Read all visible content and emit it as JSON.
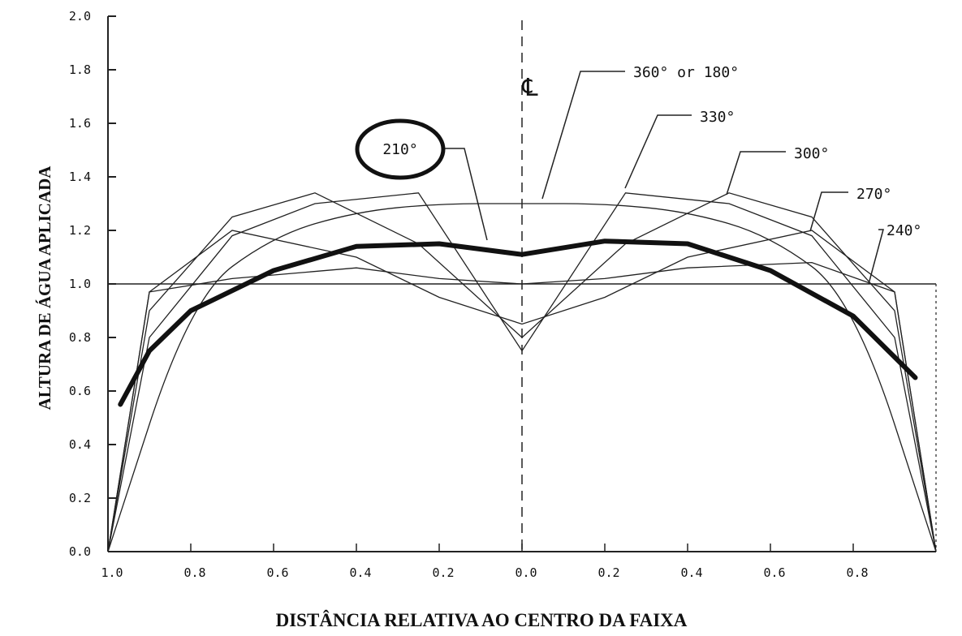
{
  "chart_data": {
    "type": "line",
    "xlabel": "DISTÂNCIA RELATIVA AO CENTRO DA FAIXA",
    "ylabel": "ALTURA DE ÁGUA APLICADA",
    "ylim": [
      0,
      2.0
    ],
    "xlim": [
      -1.0,
      1.0
    ],
    "y_ticks": [
      "0.0",
      "0.2",
      "0.4",
      "0.6",
      "0.8",
      "1.0",
      "1.2",
      "1.4",
      "1.6",
      "1.8",
      "2.0"
    ],
    "x_tick_labels": [
      "1.0",
      "0.8",
      "0.6",
      "0.4",
      "0.2",
      "0.0",
      "0.2",
      "0.4",
      "0.6",
      "0.8"
    ],
    "centerline_label": "℄",
    "grid": false,
    "series": [
      {
        "name": "360° or 180°",
        "x": [
          -1.0,
          -0.8,
          -0.6,
          -0.4,
          -0.2,
          0.0,
          0.2,
          0.4,
          0.6,
          0.8,
          1.0
        ],
        "y": [
          0.0,
          0.95,
          1.18,
          1.27,
          1.3,
          1.3,
          1.3,
          1.27,
          1.18,
          0.95,
          0.0
        ]
      },
      {
        "name": "330°",
        "x": [
          -1.0,
          -0.9,
          -0.7,
          -0.5,
          -0.25,
          0.0,
          0.25,
          0.5,
          0.7,
          0.9,
          1.0
        ],
        "y": [
          0.0,
          0.8,
          1.18,
          1.3,
          1.34,
          0.75,
          1.34,
          1.3,
          1.18,
          0.8,
          0.0
        ]
      },
      {
        "name": "300°",
        "x": [
          -1.0,
          -0.9,
          -0.7,
          -0.5,
          -0.25,
          0.0,
          0.25,
          0.5,
          0.7,
          0.9,
          1.0
        ],
        "y": [
          0.0,
          0.9,
          1.25,
          1.34,
          1.15,
          0.8,
          1.15,
          1.34,
          1.25,
          0.9,
          0.0
        ]
      },
      {
        "name": "270°",
        "x": [
          -1.0,
          -0.9,
          -0.7,
          -0.4,
          -0.2,
          0.0,
          0.2,
          0.4,
          0.7,
          0.9,
          1.0
        ],
        "y": [
          0.0,
          0.97,
          1.2,
          1.1,
          0.95,
          0.85,
          0.95,
          1.1,
          1.2,
          0.97,
          0.0
        ]
      },
      {
        "name": "240°",
        "x": [
          -1.0,
          -0.9,
          -0.7,
          -0.4,
          -0.2,
          0.0,
          0.2,
          0.4,
          0.7,
          0.9,
          1.0
        ],
        "y": [
          0.0,
          0.97,
          1.02,
          1.06,
          1.02,
          1.0,
          1.02,
          1.06,
          1.08,
          0.97,
          0.0
        ]
      },
      {
        "name": "210°",
        "x": [
          -0.97,
          -0.9,
          -0.8,
          -0.6,
          -0.4,
          -0.2,
          0.0,
          0.2,
          0.4,
          0.6,
          0.8,
          0.95
        ],
        "y": [
          0.55,
          0.75,
          0.9,
          1.05,
          1.14,
          1.15,
          1.11,
          1.16,
          1.15,
          1.05,
          0.88,
          0.65
        ]
      }
    ]
  }
}
